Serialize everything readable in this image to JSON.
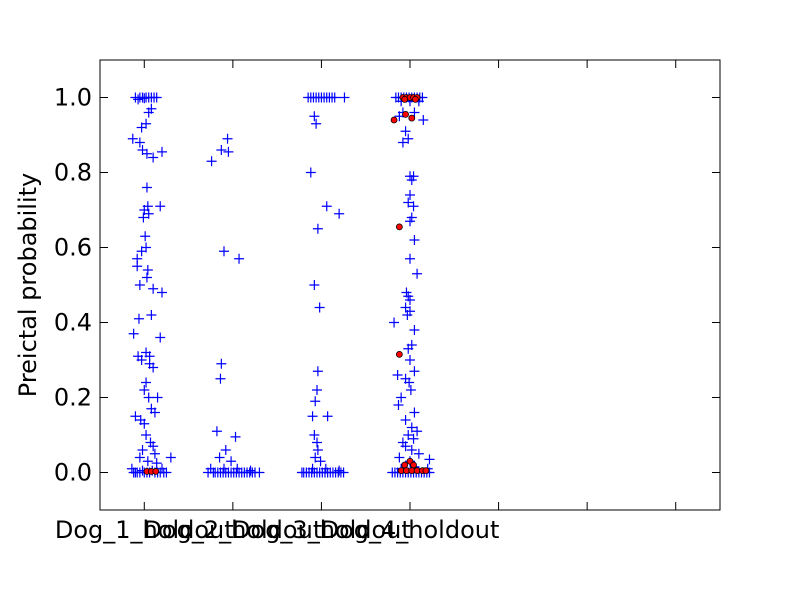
{
  "chart_data": {
    "type": "scatter",
    "title": "",
    "xlabel": "",
    "ylabel": "Preictal probability",
    "ylim": [
      -0.1,
      1.1
    ],
    "xlim": [
      0.5,
      7.5
    ],
    "grid": false,
    "yticks": [
      {
        "value": 0.0,
        "label": "0.0"
      },
      {
        "value": 0.2,
        "label": "0.2"
      },
      {
        "value": 0.4,
        "label": "0.4"
      },
      {
        "value": 0.6,
        "label": "0.6"
      },
      {
        "value": 0.8,
        "label": "0.8"
      },
      {
        "value": 1.0,
        "label": "1.0"
      }
    ],
    "xticks": [
      {
        "value": 1,
        "label": "Dog_1_holdout"
      },
      {
        "value": 2,
        "label": "Dog_2_holdout"
      },
      {
        "value": 3,
        "label": "Dog_3_holdout"
      },
      {
        "value": 4,
        "label": "Dog_4_holdout"
      },
      {
        "value": 5,
        "label": ""
      },
      {
        "value": 6,
        "label": ""
      },
      {
        "value": 7,
        "label": ""
      }
    ],
    "series": [
      {
        "marker": "plus",
        "color": "#0000ff",
        "points": [
          [
            0.95,
            1.0
          ],
          [
            0.98,
            1.0
          ],
          [
            1.02,
            1.0
          ],
          [
            1.05,
            1.0
          ],
          [
            1.08,
            1.0
          ],
          [
            1.11,
            1.0
          ],
          [
            0.9,
            1.0
          ],
          [
            1.14,
            1.0
          ],
          [
            0.93,
            0.995
          ],
          [
            1.0,
            0.998
          ],
          [
            0.87,
            0.89
          ],
          [
            0.95,
            0.88
          ],
          [
            0.98,
            0.86
          ],
          [
            1.03,
            0.85
          ],
          [
            1.1,
            0.84
          ],
          [
            1.2,
            0.855
          ],
          [
            0.97,
            0.92
          ],
          [
            1.02,
            0.93
          ],
          [
            1.05,
            0.96
          ],
          [
            1.08,
            0.97
          ],
          [
            1.03,
            0.76
          ],
          [
            1.0,
            0.7
          ],
          [
            1.04,
            0.71
          ],
          [
            1.18,
            0.71
          ],
          [
            0.99,
            0.68
          ],
          [
            1.05,
            0.69
          ],
          [
            1.01,
            0.63
          ],
          [
            1.02,
            0.6
          ],
          [
            0.97,
            0.59
          ],
          [
            0.92,
            0.57
          ],
          [
            0.92,
            0.55
          ],
          [
            1.04,
            0.54
          ],
          [
            1.03,
            0.52
          ],
          [
            0.95,
            0.5
          ],
          [
            1.1,
            0.49
          ],
          [
            1.2,
            0.48
          ],
          [
            1.08,
            0.42
          ],
          [
            0.94,
            0.41
          ],
          [
            0.88,
            0.37
          ],
          [
            1.18,
            0.36
          ],
          [
            1.02,
            0.32
          ],
          [
            1.06,
            0.31
          ],
          [
            0.93,
            0.31
          ],
          [
            0.97,
            0.3
          ],
          [
            1.06,
            0.29
          ],
          [
            1.1,
            0.28
          ],
          [
            1.02,
            0.24
          ],
          [
            1.0,
            0.22
          ],
          [
            1.05,
            0.2
          ],
          [
            1.15,
            0.2
          ],
          [
            1.08,
            0.17
          ],
          [
            1.12,
            0.16
          ],
          [
            0.9,
            0.15
          ],
          [
            0.96,
            0.14
          ],
          [
            1.0,
            0.13
          ],
          [
            1.02,
            0.1
          ],
          [
            1.07,
            0.08
          ],
          [
            1.1,
            0.07
          ],
          [
            0.98,
            0.06
          ],
          [
            1.12,
            0.05
          ],
          [
            1.3,
            0.04
          ],
          [
            0.95,
            0.04
          ],
          [
            1.04,
            0.03
          ],
          [
            1.14,
            0.025
          ],
          [
            0.86,
            0.01
          ],
          [
            0.9,
            0.0
          ],
          [
            0.92,
            0.0
          ],
          [
            0.95,
            0.0
          ],
          [
            0.98,
            0.005
          ],
          [
            1.0,
            0.0
          ],
          [
            1.03,
            0.0
          ],
          [
            1.06,
            0.0
          ],
          [
            1.09,
            0.005
          ],
          [
            1.12,
            0.0
          ],
          [
            1.15,
            0.0
          ],
          [
            1.18,
            0.0
          ],
          [
            1.2,
            0.01
          ],
          [
            0.88,
            0.0
          ],
          [
            1.22,
            0.0
          ],
          [
            1.25,
            0.0
          ],
          [
            1.76,
            0.83
          ],
          [
            1.87,
            0.86
          ],
          [
            1.94,
            0.89
          ],
          [
            1.95,
            0.855
          ],
          [
            1.9,
            0.59
          ],
          [
            2.07,
            0.57
          ],
          [
            1.87,
            0.29
          ],
          [
            1.86,
            0.25
          ],
          [
            1.82,
            0.11
          ],
          [
            2.03,
            0.095
          ],
          [
            1.92,
            0.06
          ],
          [
            1.98,
            0.03
          ],
          [
            1.85,
            0.04
          ],
          [
            1.78,
            0.0
          ],
          [
            1.8,
            0.0
          ],
          [
            1.83,
            0.0
          ],
          [
            1.86,
            0.0
          ],
          [
            1.89,
            0.0
          ],
          [
            1.92,
            0.0
          ],
          [
            1.95,
            0.0
          ],
          [
            1.98,
            0.0
          ],
          [
            2.01,
            0.0
          ],
          [
            2.04,
            0.0
          ],
          [
            2.07,
            0.0
          ],
          [
            2.1,
            0.0
          ],
          [
            2.13,
            0.0
          ],
          [
            2.16,
            0.0
          ],
          [
            2.19,
            0.0
          ],
          [
            2.22,
            0.0
          ],
          [
            2.25,
            0.0
          ],
          [
            1.75,
            0.01
          ],
          [
            1.9,
            0.01
          ],
          [
            2.05,
            0.01
          ],
          [
            2.2,
            0.005
          ],
          [
            2.3,
            0.0
          ],
          [
            1.72,
            0.0
          ],
          [
            2.85,
            1.0
          ],
          [
            2.88,
            1.0
          ],
          [
            2.91,
            1.0
          ],
          [
            2.94,
            1.0
          ],
          [
            2.97,
            1.0
          ],
          [
            3.0,
            1.0
          ],
          [
            3.03,
            1.0
          ],
          [
            3.06,
            1.0
          ],
          [
            3.09,
            1.0
          ],
          [
            3.12,
            1.0
          ],
          [
            3.15,
            1.0
          ],
          [
            3.26,
            1.0
          ],
          [
            2.92,
            0.95
          ],
          [
            2.94,
            0.93
          ],
          [
            2.88,
            0.8
          ],
          [
            3.06,
            0.71
          ],
          [
            3.2,
            0.69
          ],
          [
            2.96,
            0.65
          ],
          [
            2.92,
            0.5
          ],
          [
            2.98,
            0.44
          ],
          [
            2.96,
            0.27
          ],
          [
            2.95,
            0.22
          ],
          [
            2.93,
            0.19
          ],
          [
            2.9,
            0.15
          ],
          [
            3.07,
            0.15
          ],
          [
            2.92,
            0.1
          ],
          [
            2.95,
            0.08
          ],
          [
            2.96,
            0.06
          ],
          [
            2.93,
            0.04
          ],
          [
            2.99,
            0.03
          ],
          [
            2.78,
            0.0
          ],
          [
            2.8,
            0.0
          ],
          [
            2.83,
            0.0
          ],
          [
            2.86,
            0.0
          ],
          [
            2.89,
            0.0
          ],
          [
            2.92,
            0.0
          ],
          [
            2.95,
            0.0
          ],
          [
            2.98,
            0.0
          ],
          [
            3.01,
            0.0
          ],
          [
            3.04,
            0.0
          ],
          [
            3.07,
            0.0
          ],
          [
            3.1,
            0.0
          ],
          [
            3.13,
            0.0
          ],
          [
            3.16,
            0.0
          ],
          [
            3.19,
            0.0
          ],
          [
            3.22,
            0.0
          ],
          [
            3.25,
            0.0
          ],
          [
            2.9,
            0.01
          ],
          [
            3.05,
            0.01
          ],
          [
            3.2,
            0.005
          ],
          [
            3.84,
            1.0
          ],
          [
            3.87,
            1.0
          ],
          [
            3.9,
            1.0
          ],
          [
            3.93,
            1.0
          ],
          [
            3.96,
            1.0
          ],
          [
            3.99,
            1.0
          ],
          [
            4.02,
            1.0
          ],
          [
            4.05,
            1.0
          ],
          [
            4.08,
            1.0
          ],
          [
            4.11,
            1.0
          ],
          [
            4.14,
            1.0
          ],
          [
            3.9,
            0.99
          ],
          [
            4.0,
            0.99
          ],
          [
            4.1,
            0.99
          ],
          [
            3.88,
            0.95
          ],
          [
            3.92,
            0.96
          ],
          [
            4.05,
            0.96
          ],
          [
            4.15,
            0.94
          ],
          [
            3.95,
            0.91
          ],
          [
            3.98,
            0.89
          ],
          [
            3.92,
            0.88
          ],
          [
            4.0,
            0.79
          ],
          [
            4.02,
            0.78
          ],
          [
            4.04,
            0.79
          ],
          [
            4.0,
            0.74
          ],
          [
            4.04,
            0.71
          ],
          [
            3.98,
            0.72
          ],
          [
            4.02,
            0.68
          ],
          [
            4.0,
            0.67
          ],
          [
            4.05,
            0.62
          ],
          [
            4.0,
            0.57
          ],
          [
            4.08,
            0.53
          ],
          [
            3.96,
            0.48
          ],
          [
            3.98,
            0.47
          ],
          [
            4.0,
            0.46
          ],
          [
            3.95,
            0.44
          ],
          [
            4.0,
            0.43
          ],
          [
            3.97,
            0.42
          ],
          [
            3.82,
            0.4
          ],
          [
            4.05,
            0.38
          ],
          [
            4.02,
            0.34
          ],
          [
            3.98,
            0.33
          ],
          [
            4.0,
            0.3
          ],
          [
            4.05,
            0.27
          ],
          [
            3.86,
            0.26
          ],
          [
            3.95,
            0.25
          ],
          [
            3.99,
            0.24
          ],
          [
            4.01,
            0.22
          ],
          [
            3.9,
            0.2
          ],
          [
            3.87,
            0.18
          ],
          [
            4.05,
            0.16
          ],
          [
            3.95,
            0.14
          ],
          [
            4.02,
            0.12
          ],
          [
            4.08,
            0.11
          ],
          [
            3.98,
            0.1
          ],
          [
            4.04,
            0.09
          ],
          [
            3.92,
            0.08
          ],
          [
            3.95,
            0.07
          ],
          [
            4.02,
            0.06
          ],
          [
            4.1,
            0.05
          ],
          [
            3.88,
            0.04
          ],
          [
            4.22,
            0.035
          ],
          [
            4.0,
            0.03
          ],
          [
            3.8,
            0.0
          ],
          [
            3.83,
            0.0
          ],
          [
            3.86,
            0.0
          ],
          [
            3.89,
            0.0
          ],
          [
            3.92,
            0.0
          ],
          [
            3.95,
            0.0
          ],
          [
            3.98,
            0.0
          ],
          [
            4.01,
            0.0
          ],
          [
            4.04,
            0.0
          ],
          [
            4.07,
            0.0
          ],
          [
            4.1,
            0.0
          ],
          [
            4.13,
            0.0
          ],
          [
            4.16,
            0.0
          ],
          [
            4.19,
            0.0
          ],
          [
            4.22,
            0.0
          ],
          [
            3.9,
            0.01
          ],
          [
            4.05,
            0.015
          ],
          [
            4.2,
            0.01
          ]
        ]
      },
      {
        "marker": "circle",
        "color": "#ff0000",
        "points": [
          [
            1.03,
            0.003
          ],
          [
            1.08,
            0.003
          ],
          [
            1.13,
            0.003
          ],
          [
            3.92,
            1.0
          ],
          [
            3.96,
            1.0
          ],
          [
            4.0,
            1.0
          ],
          [
            4.04,
            1.0
          ],
          [
            4.08,
            1.0
          ],
          [
            3.94,
            0.995
          ],
          [
            4.06,
            0.995
          ],
          [
            3.82,
            0.94
          ],
          [
            3.95,
            0.955
          ],
          [
            4.02,
            0.945
          ],
          [
            3.88,
            0.655
          ],
          [
            3.88,
            0.315
          ],
          [
            3.94,
            0.02
          ],
          [
            4.0,
            0.03
          ],
          [
            4.04,
            0.02
          ],
          [
            3.9,
            0.005
          ],
          [
            3.96,
            0.005
          ],
          [
            4.02,
            0.005
          ],
          [
            4.08,
            0.005
          ],
          [
            4.14,
            0.005
          ],
          [
            4.18,
            0.005
          ]
        ]
      }
    ]
  }
}
